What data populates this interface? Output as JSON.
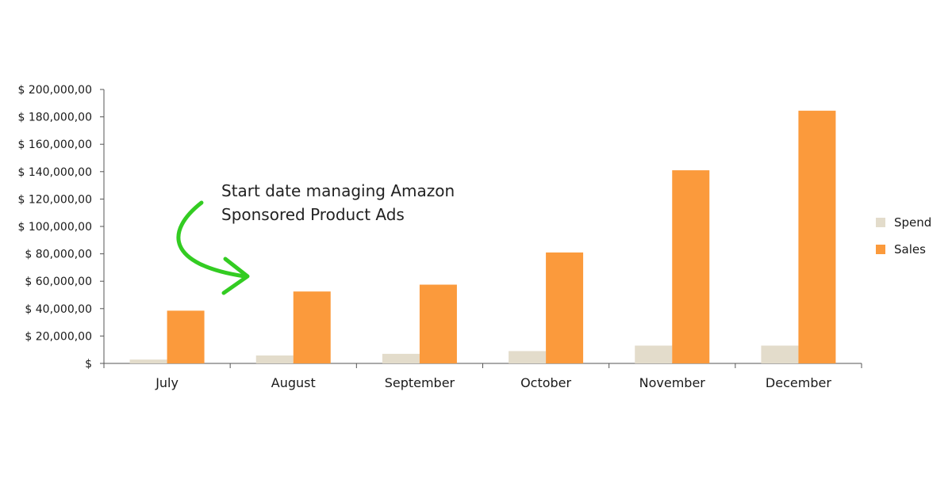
{
  "chart_data": {
    "type": "bar",
    "title": "",
    "xlabel": "",
    "ylabel": "",
    "categories": [
      "July",
      "August",
      "September",
      "October",
      "November",
      "December"
    ],
    "series": [
      {
        "name": "Spend",
        "color": "#e3dccb",
        "values": [
          2800,
          5800,
          7000,
          9000,
          13000,
          13000
        ]
      },
      {
        "name": "Sales",
        "color": "#fb9a3c",
        "values": [
          38500,
          52500,
          57500,
          81000,
          141000,
          184500
        ]
      }
    ],
    "ylim": [
      0,
      200000
    ],
    "yticks": [
      {
        "value": 0,
        "label": "$"
      },
      {
        "value": 20000,
        "label": "$ 20,000,00"
      },
      {
        "value": 40000,
        "label": "$ 40,000,00"
      },
      {
        "value": 60000,
        "label": "$ 60,000,00"
      },
      {
        "value": 80000,
        "label": "$ 80,000,00"
      },
      {
        "value": 100000,
        "label": "$ 100,000,00"
      },
      {
        "value": 120000,
        "label": "$ 120,000,00"
      },
      {
        "value": 140000,
        "label": "$ 140,000,00"
      },
      {
        "value": 160000,
        "label": "$ 160,000,00"
      },
      {
        "value": 180000,
        "label": "$ 180,000,00"
      },
      {
        "value": 200000,
        "label": "$ 200,000,00"
      }
    ],
    "grid": false,
    "legend": {
      "position": "right"
    },
    "annotation": {
      "lines": [
        "Start date managing Amazon",
        "Sponsored Product Ads"
      ],
      "arrow_color": "#33cc22",
      "points_to": "August"
    }
  }
}
